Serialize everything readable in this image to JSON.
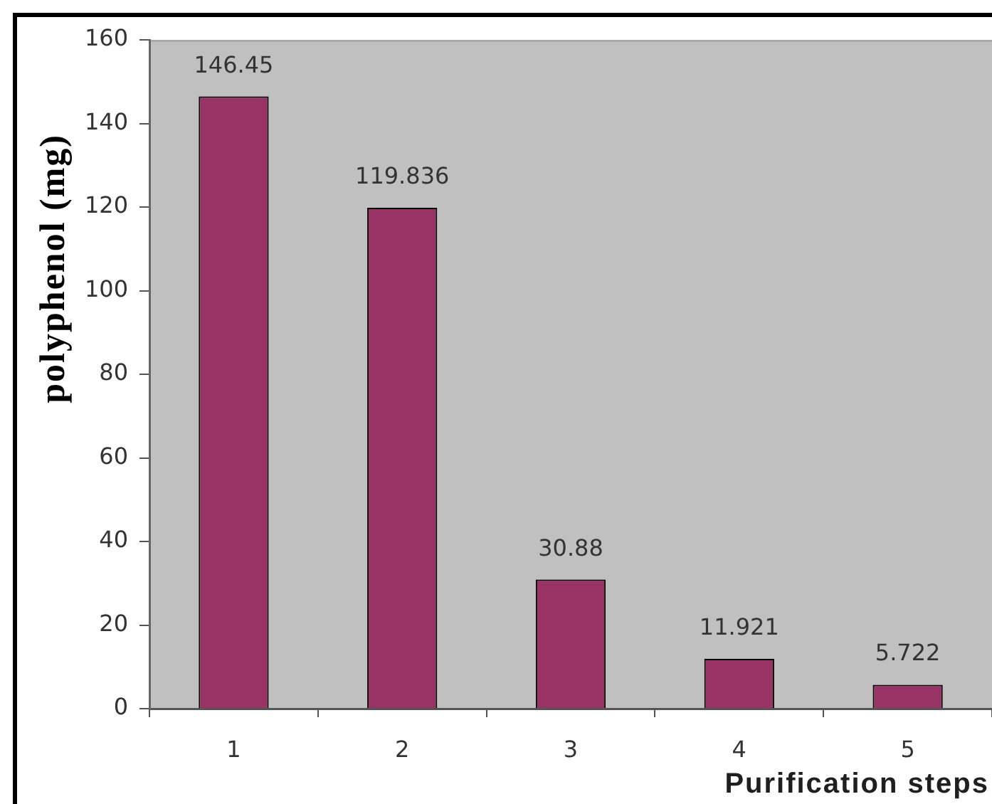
{
  "chart_data": {
    "type": "bar",
    "xlabel": "Purification steps",
    "ylabel": "polyphenol (mg)",
    "categories": [
      "1",
      "2",
      "3",
      "4",
      "5"
    ],
    "values": [
      146.45,
      119.836,
      30.88,
      11.921,
      5.722
    ],
    "color": "#993366",
    "ylim": [
      0,
      160
    ],
    "yticks": [
      0,
      20,
      40,
      60,
      80,
      100,
      120,
      140,
      160
    ],
    "data_labels": true,
    "grid": false,
    "legend": false
  }
}
